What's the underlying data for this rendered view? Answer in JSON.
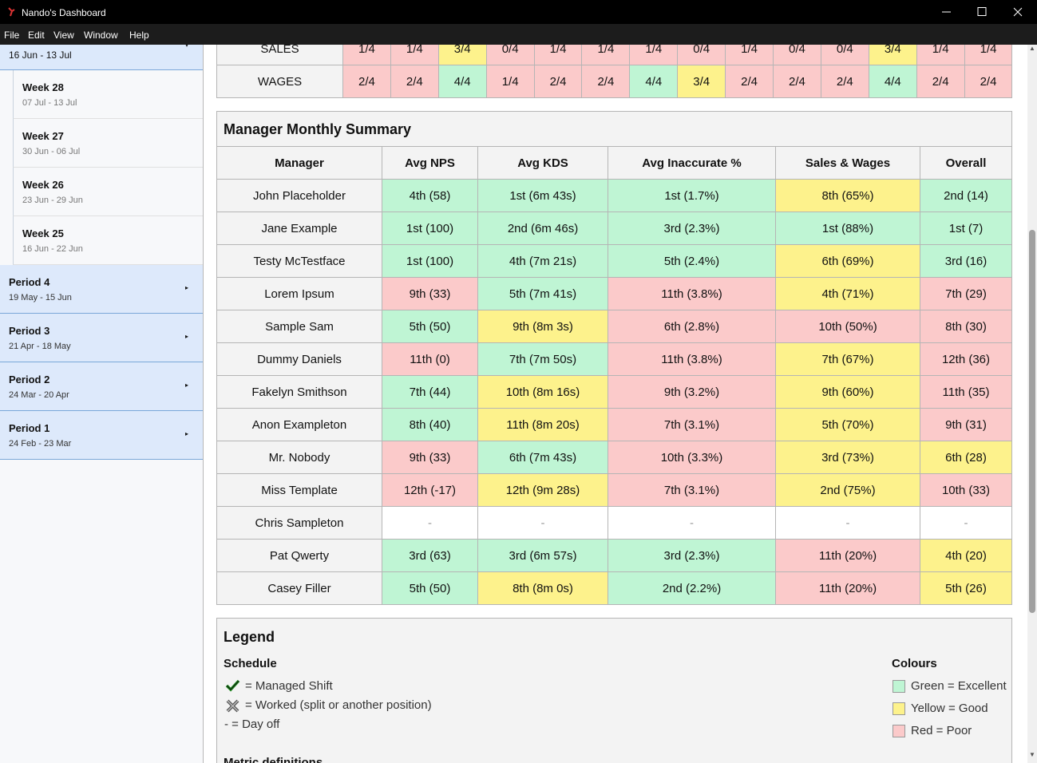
{
  "window": {
    "title": "Nando's Dashboard"
  },
  "menu": [
    "File",
    "Edit",
    "View",
    "Window",
    "Help"
  ],
  "sidebar": {
    "current_dates": "16 Jun - 13 Jul",
    "weeks": [
      {
        "label": "Week 28",
        "dates": "07 Jul - 13 Jul"
      },
      {
        "label": "Week 27",
        "dates": "30 Jun - 06 Jul"
      },
      {
        "label": "Week 26",
        "dates": "23 Jun - 29 Jun"
      },
      {
        "label": "Week 25",
        "dates": "16 Jun - 22 Jun"
      }
    ],
    "periods": [
      {
        "label": "Period 4",
        "dates": "19 May - 15 Jun"
      },
      {
        "label": "Period 3",
        "dates": "21 Apr - 18 May"
      },
      {
        "label": "Period 2",
        "dates": "24 Mar - 20 Apr"
      },
      {
        "label": "Period 1",
        "dates": "24 Feb - 23 Mar"
      }
    ]
  },
  "schedule_table": {
    "rows": [
      {
        "label": "SALES",
        "values": [
          "1/4",
          "1/4",
          "3/4",
          "0/4",
          "1/4",
          "1/4",
          "1/4",
          "0/4",
          "1/4",
          "0/4",
          "0/4",
          "3/4",
          "1/4",
          "1/4"
        ],
        "colors": [
          "#fbcaca",
          "#fbcaca",
          "#fdf28c",
          "#fbcaca",
          "#fbcaca",
          "#fbcaca",
          "#fbcaca",
          "#fbcaca",
          "#fbcaca",
          "#fbcaca",
          "#fbcaca",
          "#fdf28c",
          "#fbcaca",
          "#fbcaca"
        ]
      },
      {
        "label": "WAGES",
        "values": [
          "2/4",
          "2/4",
          "4/4",
          "1/4",
          "2/4",
          "2/4",
          "4/4",
          "3/4",
          "2/4",
          "2/4",
          "2/4",
          "4/4",
          "2/4",
          "2/4"
        ],
        "colors": [
          "#fbcaca",
          "#fbcaca",
          "#bff5d4",
          "#fbcaca",
          "#fbcaca",
          "#fbcaca",
          "#bff5d4",
          "#fdf28c",
          "#fbcaca",
          "#fbcaca",
          "#fbcaca",
          "#bff5d4",
          "#fbcaca",
          "#fbcaca"
        ]
      }
    ]
  },
  "summary": {
    "title": "Manager Monthly Summary",
    "headers": [
      "Manager",
      "Avg NPS",
      "Avg KDS",
      "Avg Inaccurate %",
      "Sales & Wages",
      "Overall"
    ],
    "rows": [
      {
        "manager": "John Placeholder",
        "values": [
          "4th (58)",
          "1st (6m 43s)",
          "1st (1.7%)",
          "8th (65%)",
          "2nd (14)"
        ],
        "colors": [
          "#bff5d4",
          "#bff5d4",
          "#bff5d4",
          "#fdf28c",
          "#bff5d4"
        ]
      },
      {
        "manager": "Jane Example",
        "values": [
          "1st (100)",
          "2nd (6m 46s)",
          "3rd (2.3%)",
          "1st (88%)",
          "1st (7)"
        ],
        "colors": [
          "#bff5d4",
          "#bff5d4",
          "#bff5d4",
          "#bff5d4",
          "#bff5d4"
        ]
      },
      {
        "manager": "Testy McTestface",
        "values": [
          "1st (100)",
          "4th (7m 21s)",
          "5th (2.4%)",
          "6th (69%)",
          "3rd (16)"
        ],
        "colors": [
          "#bff5d4",
          "#bff5d4",
          "#bff5d4",
          "#fdf28c",
          "#bff5d4"
        ]
      },
      {
        "manager": "Lorem Ipsum",
        "values": [
          "9th (33)",
          "5th (7m 41s)",
          "11th (3.8%)",
          "4th (71%)",
          "7th (29)"
        ],
        "colors": [
          "#fbcaca",
          "#bff5d4",
          "#fbcaca",
          "#fdf28c",
          "#fbcaca"
        ]
      },
      {
        "manager": "Sample Sam",
        "values": [
          "5th (50)",
          "9th (8m 3s)",
          "6th (2.8%)",
          "10th (50%)",
          "8th (30)"
        ],
        "colors": [
          "#bff5d4",
          "#fdf28c",
          "#fbcaca",
          "#fbcaca",
          "#fbcaca"
        ]
      },
      {
        "manager": "Dummy Daniels",
        "values": [
          "11th (0)",
          "7th (7m 50s)",
          "11th (3.8%)",
          "7th (67%)",
          "12th (36)"
        ],
        "colors": [
          "#fbcaca",
          "#bff5d4",
          "#fbcaca",
          "#fdf28c",
          "#fbcaca"
        ]
      },
      {
        "manager": "Fakelyn Smithson",
        "values": [
          "7th (44)",
          "10th (8m 16s)",
          "9th (3.2%)",
          "9th (60%)",
          "11th (35)"
        ],
        "colors": [
          "#bff5d4",
          "#fdf28c",
          "#fbcaca",
          "#fdf28c",
          "#fbcaca"
        ]
      },
      {
        "manager": "Anon Exampleton",
        "values": [
          "8th (40)",
          "11th (8m 20s)",
          "7th (3.1%)",
          "5th (70%)",
          "9th (31)"
        ],
        "colors": [
          "#bff5d4",
          "#fdf28c",
          "#fbcaca",
          "#fdf28c",
          "#fbcaca"
        ]
      },
      {
        "manager": "Mr. Nobody",
        "values": [
          "9th (33)",
          "6th (7m 43s)",
          "10th (3.3%)",
          "3rd (73%)",
          "6th (28)"
        ],
        "colors": [
          "#fbcaca",
          "#bff5d4",
          "#fbcaca",
          "#fdf28c",
          "#fdf28c"
        ]
      },
      {
        "manager": "Miss Template",
        "values": [
          "12th (-17)",
          "12th (9m 28s)",
          "7th (3.1%)",
          "2nd (75%)",
          "10th (33)"
        ],
        "colors": [
          "#fbcaca",
          "#fdf28c",
          "#fbcaca",
          "#fdf28c",
          "#fbcaca"
        ]
      },
      {
        "manager": "Chris Sampleton",
        "values": [
          "-",
          "-",
          "-",
          "-",
          "-"
        ],
        "colors": [
          "#ffffff",
          "#ffffff",
          "#ffffff",
          "#ffffff",
          "#ffffff"
        ]
      },
      {
        "manager": "Pat Qwerty",
        "values": [
          "3rd (63)",
          "3rd (6m 57s)",
          "3rd (2.3%)",
          "11th (20%)",
          "4th (20)"
        ],
        "colors": [
          "#bff5d4",
          "#bff5d4",
          "#bff5d4",
          "#fbcaca",
          "#fdf28c"
        ]
      },
      {
        "manager": "Casey Filler",
        "values": [
          "5th (50)",
          "8th (8m 0s)",
          "2nd (2.2%)",
          "11th (20%)",
          "5th (26)"
        ],
        "colors": [
          "#bff5d4",
          "#fdf28c",
          "#bff5d4",
          "#fbcaca",
          "#fdf28c"
        ]
      }
    ]
  },
  "legend": {
    "title": "Legend",
    "schedule": {
      "heading": "Schedule",
      "items": [
        "= Managed Shift",
        "= Worked (split or another position)",
        "- = Day off"
      ]
    },
    "colours": {
      "heading": "Colours",
      "items": [
        {
          "label": "Green = Excellent",
          "color": "#bff5d4"
        },
        {
          "label": "Yellow = Good",
          "color": "#fdf28c"
        },
        {
          "label": "Red = Poor",
          "color": "#fbcaca"
        }
      ]
    },
    "next_heading": "Metric definitions"
  }
}
